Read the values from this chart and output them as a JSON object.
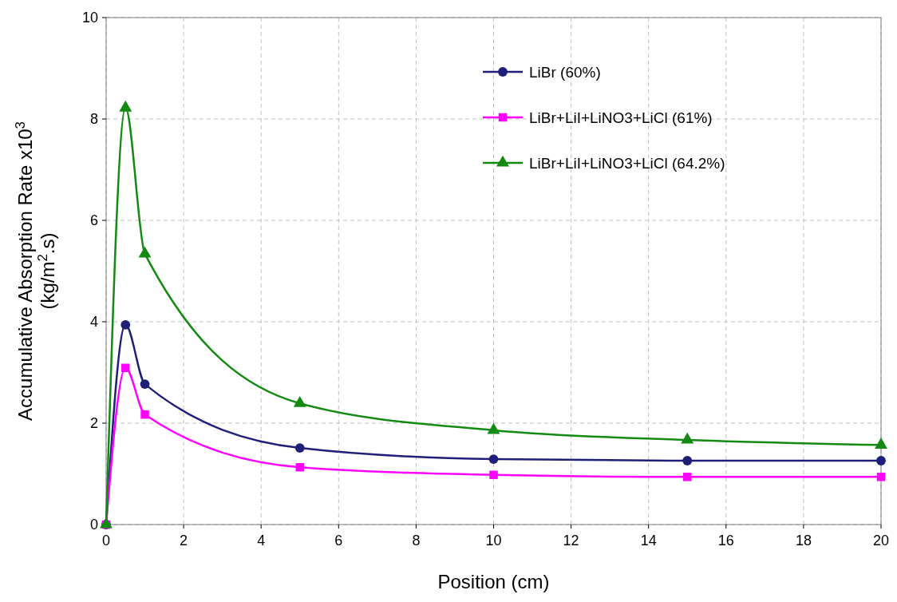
{
  "chart_data": {
    "type": "line",
    "xlabel": "Position (cm)",
    "ylabel": "Accumulative  Absorption Rate x10$^{3}$\n(kg/m$^{2}$.s)",
    "xlim": [
      0,
      20
    ],
    "xticks": [
      0,
      2,
      4,
      6,
      8,
      10,
      12,
      14,
      16,
      18,
      20
    ],
    "ylim": [
      0,
      10
    ],
    "yticks": [
      0,
      2,
      4,
      6,
      8,
      10
    ],
    "grid": true,
    "legend": "top right",
    "line_style": "solid",
    "x": [
      0,
      0.5,
      1,
      5,
      10,
      15,
      20
    ],
    "series": [
      {
        "name": "LiBr (60%)",
        "color": "#1f1f7a",
        "marker": "circle",
        "values": [
          0,
          3.94,
          2.77,
          1.51,
          1.29,
          1.26,
          1.26
        ]
      },
      {
        "name": "LiBr+LiI+LiNO3+LiCl (61%)",
        "color": "#ff00ff",
        "marker": "square",
        "values": [
          0,
          3.09,
          2.17,
          1.13,
          0.98,
          0.94,
          0.94
        ]
      },
      {
        "name": "LiBr+LiI+LiNO3+LiCl (64.2%)",
        "color": "#138a13",
        "marker": "triangle",
        "values": [
          0,
          8.22,
          5.34,
          2.39,
          1.86,
          1.67,
          1.57
        ]
      }
    ]
  }
}
